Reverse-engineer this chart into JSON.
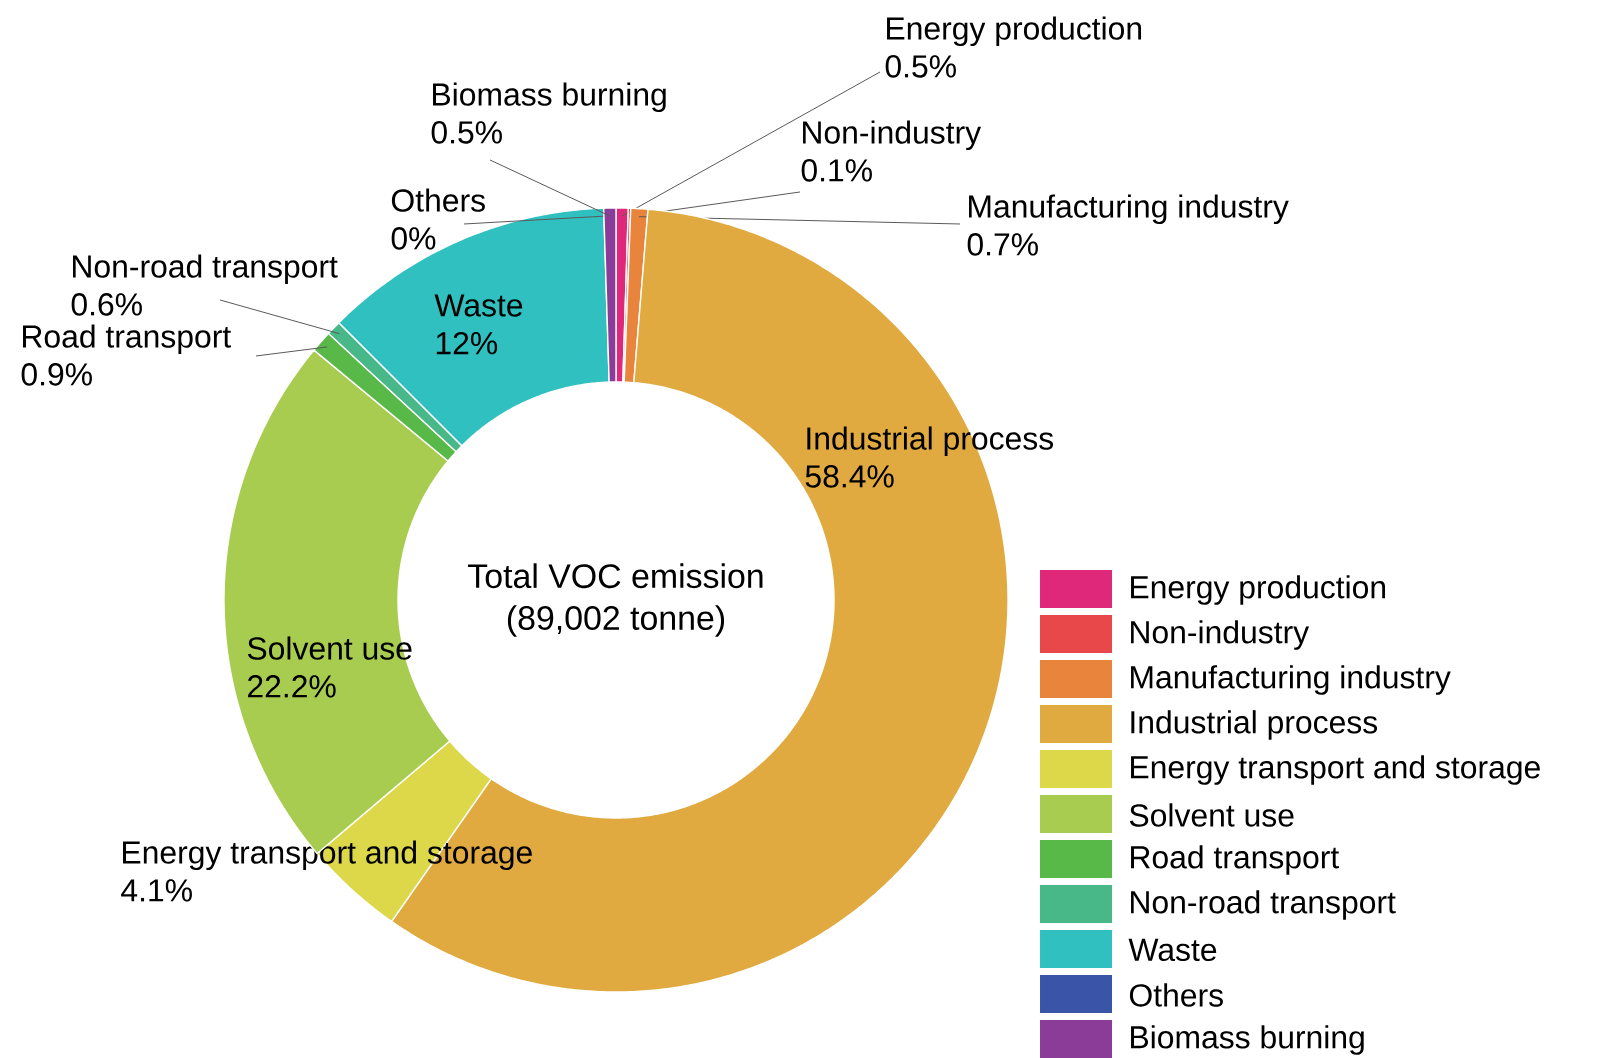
{
  "chart_data": {
    "type": "donut",
    "title": "Total VOC emission",
    "subtitle": "(89,002 tonne)",
    "categories": [
      "Energy production",
      "Non-industry",
      "Manufacturing industry",
      "Industrial process",
      "Energy transport and storage",
      "Solvent use",
      "Road transport",
      "Non-road transport",
      "Waste",
      "Others",
      "Biomass burning"
    ],
    "values": [
      0.5,
      0.1,
      0.7,
      58.4,
      4.1,
      22.2,
      0.9,
      0.6,
      12,
      0,
      0.5
    ],
    "value_labels": [
      "0.5%",
      "0.1%",
      "0.7%",
      "58.4%",
      "4.1%",
      "22.2%",
      "0.9%",
      "0.6%",
      "12%",
      "0%",
      "0.5%"
    ],
    "colors": [
      "#e0287a",
      "#e8484a",
      "#e8843c",
      "#e0aa40",
      "#dcd84a",
      "#a8cc50",
      "#58b848",
      "#48b888",
      "#30c0c0",
      "#3a54a8",
      "#8a3c98"
    ],
    "legend": "bottom right"
  }
}
